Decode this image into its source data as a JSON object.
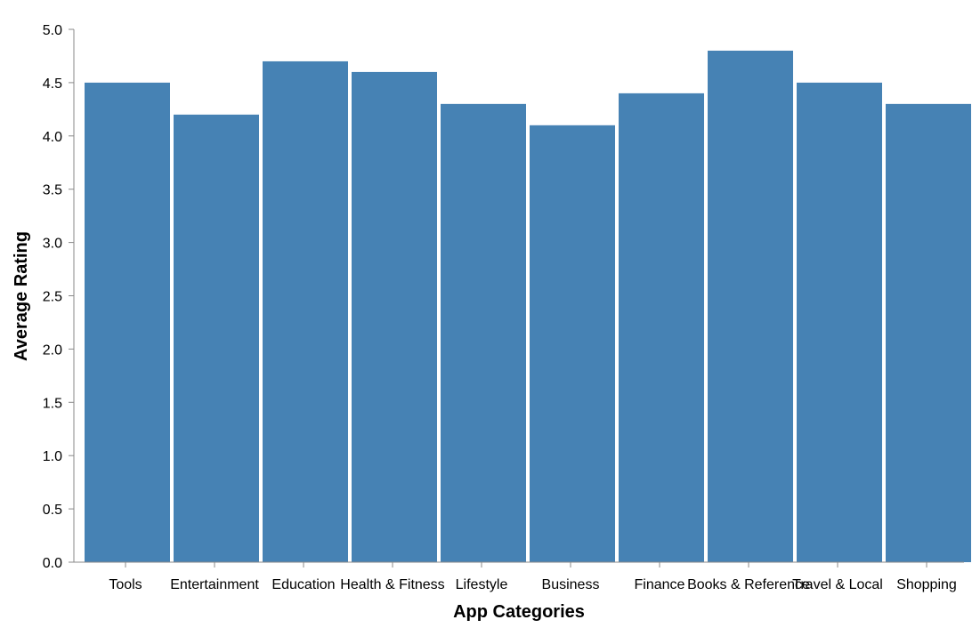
{
  "chart_data": {
    "type": "bar",
    "categories": [
      "Tools",
      "Entertainment",
      "Education",
      "Health & Fitness",
      "Lifestyle",
      "Business",
      "Finance",
      "Books & Reference",
      "Travel & Local",
      "Shopping"
    ],
    "values": [
      4.5,
      4.2,
      4.7,
      4.6,
      4.3,
      4.1,
      4.4,
      4.8,
      4.5,
      4.3
    ],
    "xlabel": "App Categories",
    "ylabel": "Average Rating",
    "ylim": [
      0,
      5
    ],
    "yticks": [
      "0.0",
      "0.5",
      "1.0",
      "1.5",
      "2.0",
      "2.5",
      "3.0",
      "3.5",
      "4.0",
      "4.5",
      "5.0"
    ],
    "grid": false,
    "colors": {
      "bar": "#4682b4",
      "axis": "#888888"
    }
  }
}
